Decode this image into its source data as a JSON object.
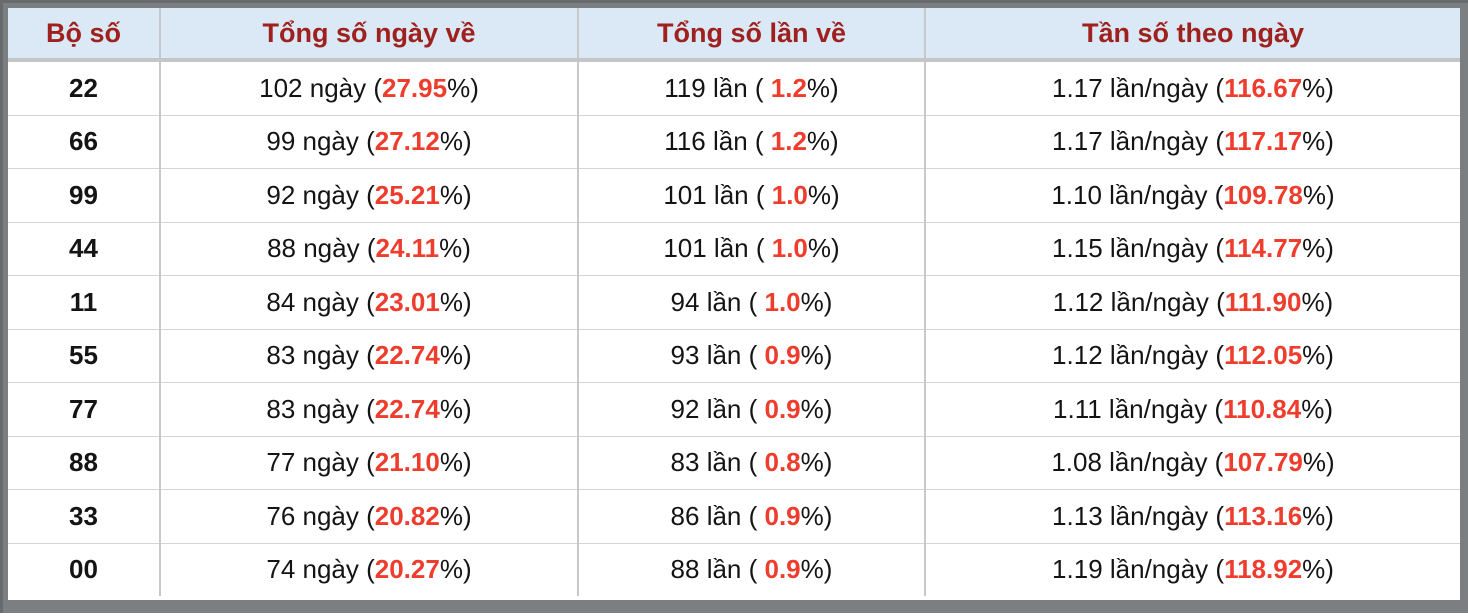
{
  "colors": {
    "frame_gray": "#7c7f81",
    "header_bg": "#dbe8f5",
    "header_text": "#9e211e",
    "value_red": "#ee3c2d",
    "body_text": "#141414",
    "col_border": "#c6c8ca",
    "row_border": "#d2d4d6",
    "header_border": "#c3c5c7"
  },
  "table": {
    "headers": [
      "Bộ số",
      "Tổng số ngày về",
      "Tổng số lần về",
      "Tần số theo ngày"
    ],
    "rows": [
      {
        "number": "22",
        "days": {
          "prefix": "102 ngày (",
          "value": "27.95",
          "suffix": "%)"
        },
        "times": {
          "prefix": "119 lần ( ",
          "value": "1.2",
          "suffix": "%)"
        },
        "freq": {
          "prefix": "1.17 lần/ngày (",
          "value": "116.67",
          "suffix": "%)"
        }
      },
      {
        "number": "66",
        "days": {
          "prefix": "99 ngày (",
          "value": "27.12",
          "suffix": "%)"
        },
        "times": {
          "prefix": "116 lần ( ",
          "value": "1.2",
          "suffix": "%)"
        },
        "freq": {
          "prefix": "1.17 lần/ngày (",
          "value": "117.17",
          "suffix": "%)"
        }
      },
      {
        "number": "99",
        "days": {
          "prefix": "92 ngày (",
          "value": "25.21",
          "suffix": "%)"
        },
        "times": {
          "prefix": "101 lần ( ",
          "value": "1.0",
          "suffix": "%)"
        },
        "freq": {
          "prefix": "1.10 lần/ngày (",
          "value": "109.78",
          "suffix": "%)"
        }
      },
      {
        "number": "44",
        "days": {
          "prefix": "88 ngày (",
          "value": "24.11",
          "suffix": "%)"
        },
        "times": {
          "prefix": "101 lần ( ",
          "value": "1.0",
          "suffix": "%)"
        },
        "freq": {
          "prefix": "1.15 lần/ngày (",
          "value": "114.77",
          "suffix": "%)"
        }
      },
      {
        "number": "11",
        "days": {
          "prefix": "84 ngày (",
          "value": "23.01",
          "suffix": "%)"
        },
        "times": {
          "prefix": "94 lần ( ",
          "value": "1.0",
          "suffix": "%)"
        },
        "freq": {
          "prefix": "1.12 lần/ngày (",
          "value": "111.90",
          "suffix": "%)"
        }
      },
      {
        "number": "55",
        "days": {
          "prefix": "83 ngày (",
          "value": "22.74",
          "suffix": "%)"
        },
        "times": {
          "prefix": "93 lần ( ",
          "value": "0.9",
          "suffix": "%)"
        },
        "freq": {
          "prefix": "1.12 lần/ngày (",
          "value": "112.05",
          "suffix": "%)"
        }
      },
      {
        "number": "77",
        "days": {
          "prefix": "83 ngày (",
          "value": "22.74",
          "suffix": "%)"
        },
        "times": {
          "prefix": "92 lần ( ",
          "value": "0.9",
          "suffix": "%)"
        },
        "freq": {
          "prefix": "1.11 lần/ngày (",
          "value": "110.84",
          "suffix": "%)"
        }
      },
      {
        "number": "88",
        "days": {
          "prefix": "77 ngày (",
          "value": "21.10",
          "suffix": "%)"
        },
        "times": {
          "prefix": "83 lần ( ",
          "value": "0.8",
          "suffix": "%)"
        },
        "freq": {
          "prefix": "1.08 lần/ngày (",
          "value": "107.79",
          "suffix": "%)"
        }
      },
      {
        "number": "33",
        "days": {
          "prefix": "76 ngày (",
          "value": "20.82",
          "suffix": "%)"
        },
        "times": {
          "prefix": "86 lần ( ",
          "value": "0.9",
          "suffix": "%)"
        },
        "freq": {
          "prefix": "1.13 lần/ngày (",
          "value": "113.16",
          "suffix": "%)"
        }
      },
      {
        "number": "00",
        "days": {
          "prefix": "74 ngày (",
          "value": "20.27",
          "suffix": "%)"
        },
        "times": {
          "prefix": "88 lần ( ",
          "value": "0.9",
          "suffix": "%)"
        },
        "freq": {
          "prefix": "1.19 lần/ngày (",
          "value": "118.92",
          "suffix": "%)"
        }
      }
    ]
  }
}
